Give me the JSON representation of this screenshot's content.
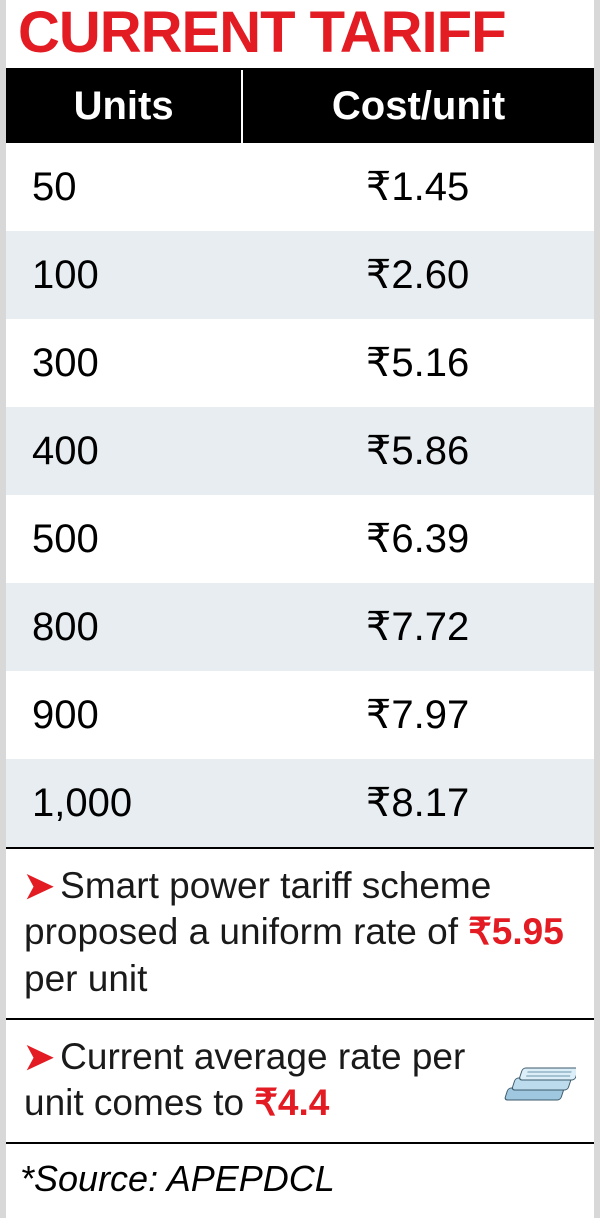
{
  "title": "CURRENT TARIFF",
  "title_color": "#e31b23",
  "table": {
    "header_bg": "#000000",
    "header_fg": "#ffffff",
    "columns": {
      "units": "Units",
      "cost": "Cost/unit"
    },
    "currency_symbol": "₹",
    "row_bg_even": "#e7edf1",
    "row_bg_odd": "#ffffff",
    "rows": [
      {
        "units": "50",
        "cost": "1.45"
      },
      {
        "units": "100",
        "cost": "2.60"
      },
      {
        "units": "300",
        "cost": "5.16"
      },
      {
        "units": "400",
        "cost": "5.86"
      },
      {
        "units": "500",
        "cost": "6.39"
      },
      {
        "units": "800",
        "cost": "7.72"
      },
      {
        "units": "900",
        "cost": "7.97"
      },
      {
        "units": "1,000",
        "cost": "8.17"
      }
    ]
  },
  "notes": {
    "arrow_glyph": "➤",
    "arrow_color": "#e31b23",
    "n1_pre": "Smart power tariff scheme proposed a uniform rate of ",
    "n1_hl": "₹5.95",
    "n1_post": " per unit",
    "n2_pre": "Current average rate per unit comes to ",
    "n2_hl": "₹4.4"
  },
  "source": {
    "prefix": "*Source: ",
    "name": "APEPDCL"
  },
  "icon": {
    "name": "money-stack-icon"
  }
}
